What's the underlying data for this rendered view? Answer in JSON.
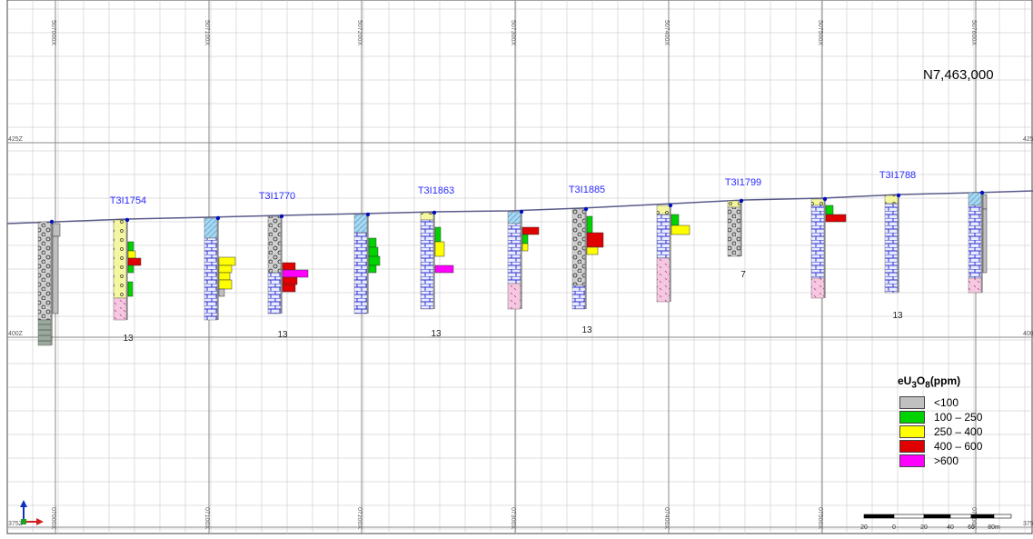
{
  "section": {
    "northing_label": "N7,463,000",
    "easting_top_labels": [
      "507000X",
      "507100X",
      "507200X",
      "507300X",
      "507400X",
      "507500X",
      "507600X"
    ],
    "easting_bottom_labels": [
      "07000X",
      "07100X",
      "07200X",
      "07300X",
      "07400X",
      "07500X",
      "07600X"
    ],
    "elevation_left": [
      "425Z",
      "400Z",
      "375Z"
    ],
    "elevation_right": [
      "425",
      "400",
      "375"
    ],
    "scale_ticks": [
      "20",
      "0",
      "20",
      "40",
      "60",
      "80m"
    ]
  },
  "holes": [
    {
      "id": "",
      "value": ""
    },
    {
      "id": "T3I1754",
      "value": "13"
    },
    {
      "id": "T3I1770",
      "value": "13"
    },
    {
      "id": "",
      "value": ""
    },
    {
      "id": "T3I1863",
      "value": "13"
    },
    {
      "id": "T3I1885",
      "value": "13"
    },
    {
      "id": "",
      "value": ""
    },
    {
      "id": "T3I1799",
      "value": "7"
    },
    {
      "id": "",
      "value": ""
    },
    {
      "id": "T3I1788",
      "value": "13"
    },
    {
      "id": "",
      "value": ""
    }
  ],
  "legend": {
    "title_main": "eU",
    "title_sub1": "3",
    "title_mid": "O",
    "title_sub2": "8",
    "title_unit": "(ppm)",
    "items": [
      {
        "label": "<100",
        "color": "#c0c0c0"
      },
      {
        "label": "100 – 250",
        "color": "#00d400"
      },
      {
        "label": "250 – 400",
        "color": "#ffff00"
      },
      {
        "label": "400 – 600",
        "color": "#e00000"
      },
      {
        "label": ">600",
        "color": "#ff00ff"
      }
    ]
  },
  "colors": {
    "grid": "#bfbfbf",
    "grid_major": "#8a8a8a",
    "topo": "#5a5a8a",
    "hole_label": "#2b2bff",
    "dolomite": "#3a3ad0",
    "sandstone": "#bdbdbd",
    "overburden": "#a8d8f0",
    "pink": "#f6c8e0",
    "collar": "#0010c0"
  }
}
